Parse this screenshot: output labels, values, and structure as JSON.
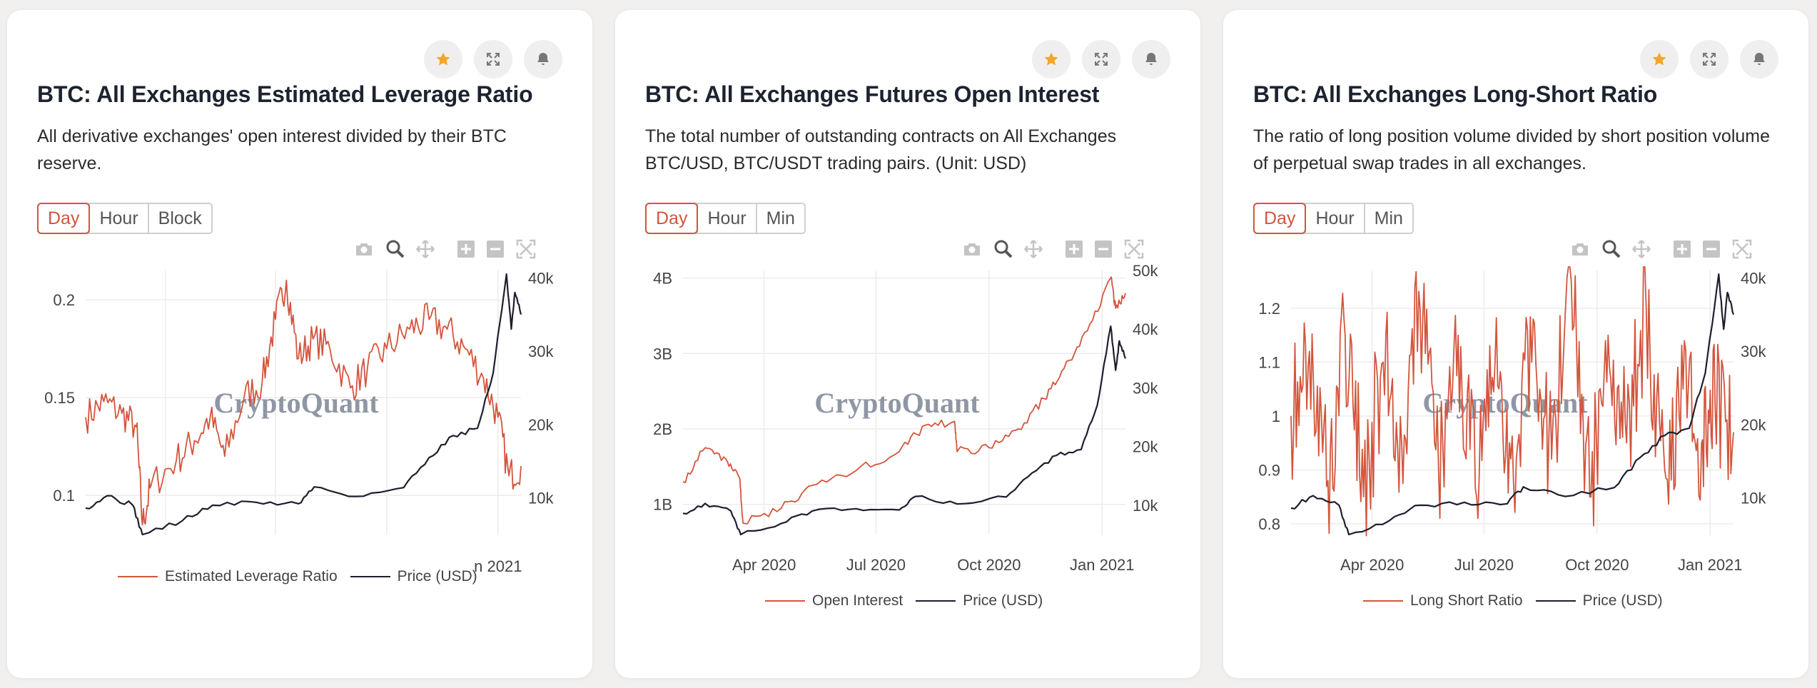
{
  "colors": {
    "accent": "#d3553d",
    "price": "#1e1e2e",
    "star": "#f4a52a",
    "grid": "#ececec",
    "watermark": "#7b8494"
  },
  "toolbar_icons": [
    "star-icon",
    "expand-icon",
    "bell-icon"
  ],
  "modebar_icons": [
    "camera-icon",
    "zoom-icon",
    "pan-icon",
    "zoom-in-icon",
    "zoom-out-icon",
    "autoscale-icon"
  ],
  "watermark": "CryptoQuant",
  "cards": [
    {
      "title": "BTC: All Exchanges Estimated Leverage Ratio",
      "description": "All derivative exchanges' open interest divided by their BTC reserve.",
      "tabs": [
        "Day",
        "Hour",
        "Block"
      ],
      "active_tab": "Day"
    },
    {
      "title": "BTC: All Exchanges Futures Open Interest",
      "description": "The total number of outstanding contracts on All Exchanges BTC/USD, BTC/USDT trading pairs. (Unit: USD)",
      "tabs": [
        "Day",
        "Hour",
        "Min"
      ],
      "active_tab": "Day"
    },
    {
      "title": "BTC: All Exchanges Long-Short Ratio",
      "description": "The ratio of long position volume divided by short position volume of perpetual swap trades in all exchanges.",
      "tabs": [
        "Day",
        "Hour",
        "Min"
      ],
      "active_tab": "Day"
    }
  ],
  "chart_data": [
    {
      "type": "line",
      "x_range": [
        "2020-01-26",
        "2021-01-20"
      ],
      "x_tick_labels": [
        "n 2021"
      ],
      "y_left": {
        "ticks": [
          0.1,
          0.15,
          0.2
        ],
        "range": [
          0.08,
          0.215
        ]
      },
      "y_right": {
        "ticks": [
          "10k",
          "20k",
          "30k",
          "40k"
        ],
        "range": [
          5000,
          41000
        ]
      },
      "legend": [
        "Estimated Leverage Ratio",
        "Price (USD)"
      ],
      "series": [
        {
          "name": "Estimated Leverage Ratio",
          "axis": "left",
          "color": "#d3553d",
          "points": [
            [
              "2020-01-26",
              0.14
            ],
            [
              "2020-02-10",
              0.148
            ],
            [
              "2020-02-25",
              0.142
            ],
            [
              "2020-03-08",
              0.135
            ],
            [
              "2020-03-13",
              0.085
            ],
            [
              "2020-03-20",
              0.105
            ],
            [
              "2020-04-10",
              0.118
            ],
            [
              "2020-04-25",
              0.128
            ],
            [
              "2020-05-08",
              0.14
            ],
            [
              "2020-05-20",
              0.12
            ],
            [
              "2020-06-05",
              0.15
            ],
            [
              "2020-06-20",
              0.158
            ],
            [
              "2020-07-01",
              0.19
            ],
            [
              "2020-07-10",
              0.21
            ],
            [
              "2020-07-20",
              0.17
            ],
            [
              "2020-08-01",
              0.18
            ],
            [
              "2020-08-15",
              0.175
            ],
            [
              "2020-09-01",
              0.155
            ],
            [
              "2020-09-15",
              0.165
            ],
            [
              "2020-10-01",
              0.175
            ],
            [
              "2020-10-20",
              0.185
            ],
            [
              "2020-11-05",
              0.19
            ],
            [
              "2020-11-20",
              0.185
            ],
            [
              "2020-12-05",
              0.175
            ],
            [
              "2020-12-20",
              0.16
            ],
            [
              "2021-01-01",
              0.14
            ],
            [
              "2021-01-10",
              0.11
            ],
            [
              "2021-01-20",
              0.115
            ]
          ]
        },
        {
          "name": "Price (USD)",
          "axis": "right",
          "color": "#1e1e2e",
          "points": [
            [
              "2020-01-26",
              8600
            ],
            [
              "2020-02-13",
              10300
            ],
            [
              "2020-03-05",
              9000
            ],
            [
              "2020-03-13",
              5000
            ],
            [
              "2020-04-15",
              6900
            ],
            [
              "2020-05-10",
              9000
            ],
            [
              "2020-06-15",
              9400
            ],
            [
              "2020-07-20",
              9200
            ],
            [
              "2020-08-02",
              11500
            ],
            [
              "2020-09-05",
              10200
            ],
            [
              "2020-10-15",
              11400
            ],
            [
              "2020-11-05",
              15500
            ],
            [
              "2020-11-25",
              18500
            ],
            [
              "2020-12-15",
              19500
            ],
            [
              "2020-12-28",
              27000
            ],
            [
              "2021-01-08",
              40500
            ],
            [
              "2021-01-12",
              33000
            ],
            [
              "2021-01-15",
              38000
            ],
            [
              "2021-01-20",
              35000
            ]
          ]
        }
      ]
    },
    {
      "type": "line",
      "x_range": [
        "2020-01-26",
        "2021-01-20"
      ],
      "x_tick_labels": [
        "Apr 2020",
        "Jul 2020",
        "Oct 2020",
        "Jan 2021"
      ],
      "y_left": {
        "ticks": [
          "1B",
          "2B",
          "3B",
          "4B"
        ],
        "range": [
          0.6,
          4.1
        ]
      },
      "y_right": {
        "ticks": [
          "10k",
          "20k",
          "30k",
          "40k",
          "50k"
        ],
        "range": [
          5000,
          50000
        ]
      },
      "legend": [
        "Open Interest",
        "Price (USD)"
      ],
      "series": [
        {
          "name": "Open Interest",
          "axis": "left",
          "unit": "B",
          "color": "#d3553d",
          "points": [
            [
              "2020-01-26",
              1.3
            ],
            [
              "2020-02-13",
              1.75
            ],
            [
              "2020-03-01",
              1.6
            ],
            [
              "2020-03-12",
              1.35
            ],
            [
              "2020-03-15",
              0.75
            ],
            [
              "2020-04-15",
              0.95
            ],
            [
              "2020-05-10",
              1.25
            ],
            [
              "2020-06-15",
              1.45
            ],
            [
              "2020-07-20",
              1.7
            ],
            [
              "2020-08-10",
              2.05
            ],
            [
              "2020-09-03",
              2.1
            ],
            [
              "2020-09-05",
              1.7
            ],
            [
              "2020-10-01",
              1.75
            ],
            [
              "2020-10-25",
              2.0
            ],
            [
              "2020-11-15",
              2.4
            ],
            [
              "2020-12-01",
              2.8
            ],
            [
              "2020-12-20",
              3.3
            ],
            [
              "2021-01-08",
              4.0
            ],
            [
              "2021-01-12",
              3.6
            ],
            [
              "2021-01-20",
              3.8
            ]
          ]
        },
        {
          "name": "Price (USD)",
          "axis": "right",
          "color": "#1e1e2e",
          "points": [
            [
              "2020-01-26",
              8600
            ],
            [
              "2020-02-13",
              10300
            ],
            [
              "2020-03-05",
              9000
            ],
            [
              "2020-03-13",
              5000
            ],
            [
              "2020-04-15",
              6900
            ],
            [
              "2020-05-10",
              9000
            ],
            [
              "2020-06-15",
              9400
            ],
            [
              "2020-07-20",
              9200
            ],
            [
              "2020-08-02",
              11500
            ],
            [
              "2020-09-05",
              10200
            ],
            [
              "2020-10-15",
              11400
            ],
            [
              "2020-11-05",
              15500
            ],
            [
              "2020-11-25",
              18500
            ],
            [
              "2020-12-15",
              19500
            ],
            [
              "2020-12-28",
              27000
            ],
            [
              "2021-01-08",
              40500
            ],
            [
              "2021-01-12",
              33000
            ],
            [
              "2021-01-15",
              38000
            ],
            [
              "2021-01-20",
              35000
            ]
          ]
        }
      ]
    },
    {
      "type": "line",
      "x_range": [
        "2020-01-26",
        "2021-01-20"
      ],
      "x_tick_labels": [
        "Apr 2020",
        "Jul 2020",
        "Oct 2020",
        "Jan 2021"
      ],
      "y_left": {
        "ticks": [
          0.8,
          0.9,
          1,
          1.1,
          1.2
        ],
        "range": [
          0.78,
          1.27
        ]
      },
      "y_right": {
        "ticks": [
          "10k",
          "20k",
          "30k",
          "40k"
        ],
        "range": [
          5000,
          41000
        ]
      },
      "legend": [
        "Long Short Ratio",
        "Price (USD)"
      ],
      "series": [
        {
          "name": "Long Short Ratio",
          "axis": "left",
          "color": "#d3553d",
          "points": [
            [
              "2020-01-26",
              1.0
            ],
            [
              "2020-02-10",
              1.12
            ],
            [
              "2020-02-25",
              0.88
            ],
            [
              "2020-03-10",
              1.15
            ],
            [
              "2020-03-25",
              0.85
            ],
            [
              "2020-04-10",
              1.1
            ],
            [
              "2020-04-25",
              0.95
            ],
            [
              "2020-05-10",
              1.2
            ],
            [
              "2020-05-25",
              0.9
            ],
            [
              "2020-06-10",
              1.15
            ],
            [
              "2020-06-25",
              0.85
            ],
            [
              "2020-07-10",
              1.1
            ],
            [
              "2020-07-25",
              0.88
            ],
            [
              "2020-08-10",
              1.18
            ],
            [
              "2020-08-25",
              0.92
            ],
            [
              "2020-09-10",
              1.25
            ],
            [
              "2020-09-25",
              0.85
            ],
            [
              "2020-10-10",
              1.15
            ],
            [
              "2020-10-25",
              0.95
            ],
            [
              "2020-11-10",
              1.2
            ],
            [
              "2020-11-25",
              0.9
            ],
            [
              "2020-12-10",
              1.05
            ],
            [
              "2020-12-25",
              0.95
            ],
            [
              "2021-01-05",
              1.02
            ],
            [
              "2021-01-20",
              0.97
            ]
          ]
        },
        {
          "name": "Price (USD)",
          "axis": "right",
          "color": "#1e1e2e",
          "points": [
            [
              "2020-01-26",
              8600
            ],
            [
              "2020-02-13",
              10300
            ],
            [
              "2020-03-05",
              9000
            ],
            [
              "2020-03-13",
              5000
            ],
            [
              "2020-04-15",
              6900
            ],
            [
              "2020-05-10",
              9000
            ],
            [
              "2020-06-15",
              9400
            ],
            [
              "2020-07-20",
              9200
            ],
            [
              "2020-08-02",
              11500
            ],
            [
              "2020-09-05",
              10200
            ],
            [
              "2020-10-15",
              11400
            ],
            [
              "2020-11-05",
              15500
            ],
            [
              "2020-11-25",
              18500
            ],
            [
              "2020-12-15",
              19500
            ],
            [
              "2020-12-28",
              27000
            ],
            [
              "2021-01-08",
              40500
            ],
            [
              "2021-01-12",
              33000
            ],
            [
              "2021-01-15",
              38000
            ],
            [
              "2021-01-20",
              35000
            ]
          ]
        }
      ]
    }
  ]
}
